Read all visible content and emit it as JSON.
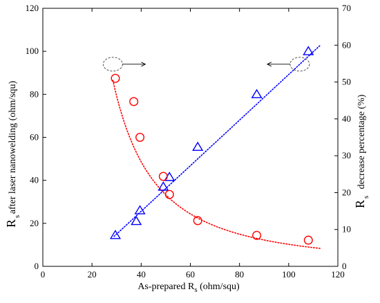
{
  "chart_data": {
    "type": "scatter",
    "xlabel_prefix": "As-prepared R",
    "xlabel_sub": "s",
    "xlabel_suffix": " (ohm/squ)",
    "ylabel_left_symbol": "R",
    "ylabel_left_sub": "s",
    "ylabel_left_text": "after laser nanowelding (ohm/squ)",
    "ylabel_right_symbol": "R",
    "ylabel_right_sub": "s",
    "ylabel_right_text": "decrease percentage (%)",
    "xlim": [
      0,
      120
    ],
    "ylim_left": [
      0,
      120
    ],
    "ylim_right": [
      0,
      70
    ],
    "xticks": [
      0,
      20,
      40,
      60,
      80,
      100,
      120
    ],
    "yticks_left": [
      0,
      20,
      40,
      60,
      80,
      100,
      120
    ],
    "yticks_right": [
      0,
      10,
      20,
      30,
      40,
      50,
      60,
      70
    ],
    "series": [
      {
        "marker": "triangle",
        "axis": "left",
        "color": "#0000ff",
        "x": [
          29.5,
          38,
          39.5,
          49,
          51.5,
          63,
          87,
          108
        ],
        "y": [
          14.5,
          21,
          26,
          37,
          41.5,
          55.5,
          80,
          100
        ]
      },
      {
        "marker": "circle",
        "axis": "right",
        "color": "#ff0000",
        "x": [
          29.5,
          37,
          39.5,
          49,
          51.5,
          63,
          87,
          108
        ],
        "y": [
          51,
          44.7,
          35,
          24.4,
          19.5,
          12.4,
          8.4,
          7.1
        ]
      }
    ],
    "fit_lines": [
      {
        "axis": "left",
        "color": "#0000ff",
        "style": "dotted",
        "kind": "linear",
        "x_range": [
          29,
          113
        ],
        "slope": 1.06,
        "intercept": -16.8
      },
      {
        "axis": "right",
        "color": "#ff0000",
        "style": "dotted",
        "kind": "power",
        "x_range": [
          28.5,
          113
        ],
        "coef": 15000,
        "exponent": -1.7
      }
    ],
    "annotations": [
      {
        "kind": "ellipse-arrow",
        "direction": "right",
        "x": 28.5,
        "y": 94,
        "axis": "left"
      },
      {
        "kind": "ellipse-arrow",
        "direction": "left",
        "x": 104.5,
        "y": 94,
        "axis": "left"
      }
    ]
  }
}
